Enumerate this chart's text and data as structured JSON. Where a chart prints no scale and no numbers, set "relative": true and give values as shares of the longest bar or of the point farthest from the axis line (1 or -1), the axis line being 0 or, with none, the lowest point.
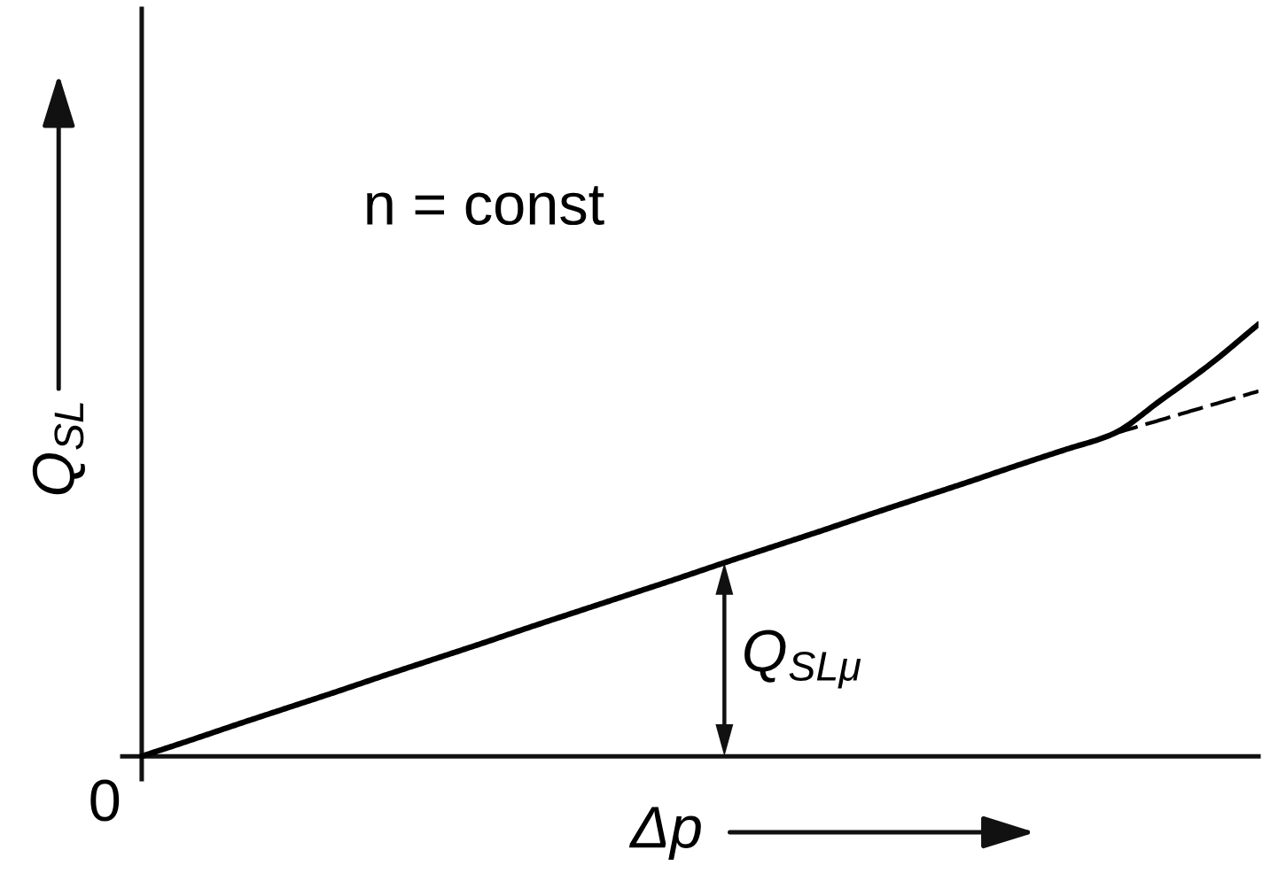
{
  "chart_data": {
    "type": "line",
    "relative": true,
    "categories": [
      null,
      null,
      null,
      null,
      null,
      null,
      null,
      null,
      null,
      null,
      null,
      null,
      null,
      null,
      null,
      null,
      null,
      null,
      null,
      null,
      null,
      null,
      null,
      null
    ],
    "xlabel": "Δp",
    "ylabel": "Q$_{SL}$",
    "annotations": [
      "n = const",
      "0",
      "Q$_{SLμ}$"
    ],
    "series": [
      {
        "color": "#000000",
        "line_style": "solid",
        "values": [
          0,
          0.037,
          0.075,
          0.112,
          0.149,
          0.187,
          0.224,
          0.261,
          0.299,
          0.336,
          0.373,
          0.41,
          0.448,
          0.485,
          0.522,
          0.56,
          0.597,
          0.634,
          0.672,
          0.709,
          0.746,
          0.825,
          0.907,
          1.0
        ]
      },
      {
        "color": "#000000",
        "line_style": "dashed",
        "values": [
          null,
          null,
          null,
          null,
          null,
          null,
          null,
          null,
          null,
          null,
          null,
          null,
          null,
          null,
          null,
          null,
          null,
          null,
          null,
          null,
          0.746,
          0.779,
          0.812,
          0.845
        ]
      }
    ]
  }
}
